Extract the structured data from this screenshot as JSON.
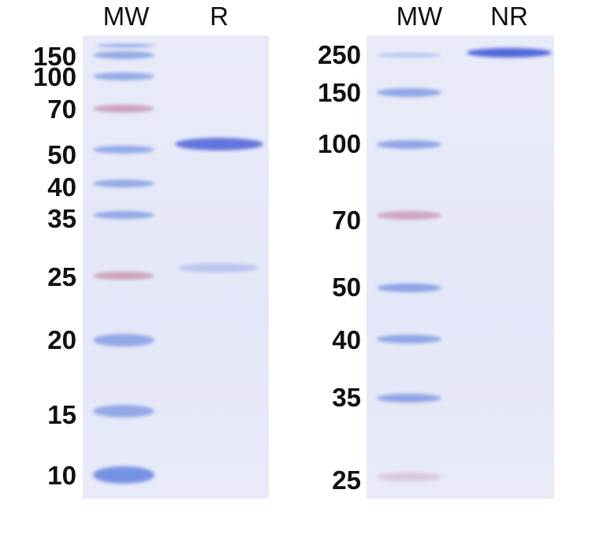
{
  "left_gel": {
    "lanes": [
      "MW",
      "R"
    ],
    "markers": [
      "150",
      "100",
      "70",
      "50",
      "40",
      "35",
      "25",
      "20",
      "15",
      "10"
    ]
  },
  "right_gel": {
    "lanes": [
      "MW",
      "NR"
    ],
    "markers": [
      "250",
      "150",
      "100",
      "70",
      "50",
      "40",
      "35",
      "25"
    ]
  },
  "colors": {
    "ladder_blue": "#6f8fe0",
    "ladder_pink": "#c48aa8",
    "sample_band": "#4a62d8",
    "gel_background": "#e6e9f8"
  }
}
